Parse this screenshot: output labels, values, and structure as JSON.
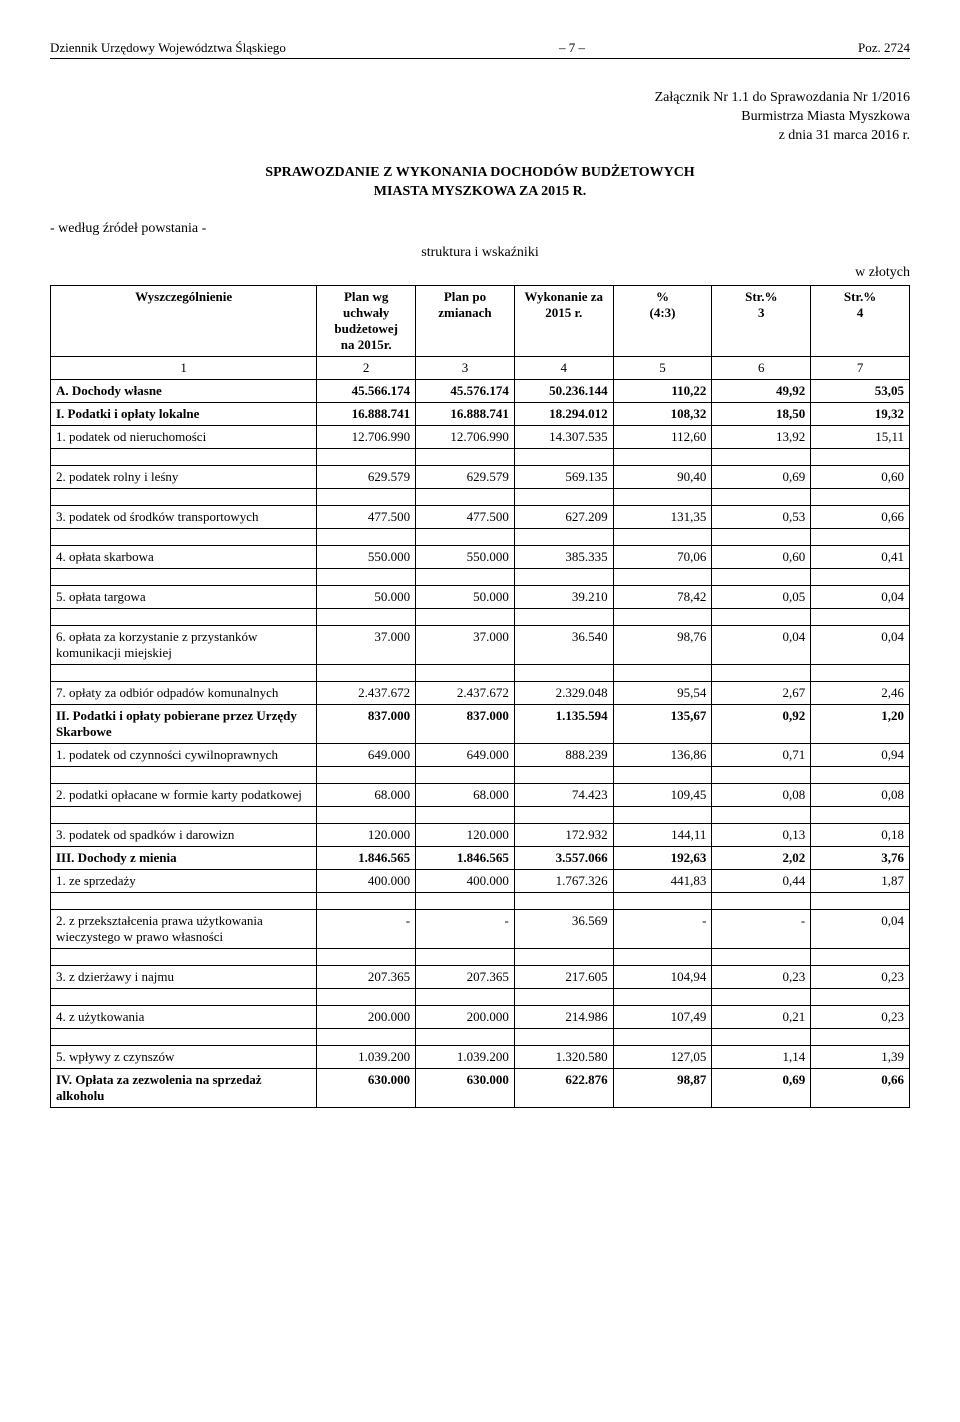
{
  "header": {
    "journal": "Dziennik Urzędowy Województwa Śląskiego",
    "page": "– 7 –",
    "poz": "Poz. 2724"
  },
  "attachment": {
    "line1": "Załącznik Nr 1.1 do Sprawozdania Nr 1/2016",
    "line2": "Burmistrza Miasta Myszkowa",
    "line3": "z dnia 31 marca 2016 r."
  },
  "title": {
    "line1": "SPRAWOZDANIE Z WYKONANIA DOCHODÓW BUDŻETOWYCH",
    "line2": "MIASTA MYSZKOWA ZA 2015 R."
  },
  "sourceLine": "- według źródeł powstania -",
  "structLine": "struktura i wskaźniki",
  "currency": "w złotych",
  "table": {
    "headers": {
      "c1": "Wyszczególnienie",
      "c2a": "Plan wg",
      "c2b": "uchwały",
      "c2c": "budżetowej",
      "c2d": "na 2015r.",
      "c3a": "Plan po",
      "c3b": "zmianach",
      "c4a": "Wykonanie za",
      "c4b": "2015 r.",
      "c5a": "%",
      "c5b": "(4:3)",
      "c6a": "Str.%",
      "c6b": "3",
      "c7a": "Str.%",
      "c7b": "4"
    },
    "colnums": [
      "1",
      "2",
      "3",
      "4",
      "5",
      "6",
      "7"
    ],
    "rows": [
      {
        "bold": true,
        "label": "A. Dochody własne",
        "v": [
          "45.566.174",
          "45.576.174",
          "50.236.144",
          "110,22",
          "49,92",
          "53,05"
        ]
      },
      {
        "bold": true,
        "label": "I. Podatki i opłaty lokalne",
        "v": [
          "16.888.741",
          "16.888.741",
          "18.294.012",
          "108,32",
          "18,50",
          "19,32"
        ]
      },
      {
        "label": "1. podatek od nieruchomości",
        "v": [
          "12.706.990",
          "12.706.990",
          "14.307.535",
          "112,60",
          "13,92",
          "15,11"
        ]
      },
      {
        "spacer": true
      },
      {
        "label": "2. podatek rolny i leśny",
        "v": [
          "629.579",
          "629.579",
          "569.135",
          "90,40",
          "0,69",
          "0,60"
        ]
      },
      {
        "spacer": true
      },
      {
        "label": "3. podatek od środków transportowych",
        "v": [
          "477.500",
          "477.500",
          "627.209",
          "131,35",
          "0,53",
          "0,66"
        ]
      },
      {
        "spacer": true
      },
      {
        "label": "4. opłata skarbowa",
        "v": [
          "550.000",
          "550.000",
          "385.335",
          "70,06",
          "0,60",
          "0,41"
        ]
      },
      {
        "spacer": true
      },
      {
        "label": "5. opłata targowa",
        "v": [
          "50.000",
          "50.000",
          "39.210",
          "78,42",
          "0,05",
          "0,04"
        ]
      },
      {
        "spacer": true
      },
      {
        "label": "6. opłata za korzystanie z przystanków komunikacji miejskiej",
        "v": [
          "37.000",
          "37.000",
          "36.540",
          "98,76",
          "0,04",
          "0,04"
        ]
      },
      {
        "spacer": true
      },
      {
        "label": "7. opłaty za odbiór odpadów komunalnych",
        "v": [
          "2.437.672",
          "2.437.672",
          "2.329.048",
          "95,54",
          "2,67",
          "2,46"
        ]
      },
      {
        "bold": true,
        "label": "II. Podatki i opłaty pobierane przez Urzędy Skarbowe",
        "v": [
          "837.000",
          "837.000",
          "1.135.594",
          "135,67",
          "0,92",
          "1,20"
        ]
      },
      {
        "label": "1. podatek od czynności cywilnoprawnych",
        "v": [
          "649.000",
          "649.000",
          "888.239",
          "136,86",
          "0,71",
          "0,94"
        ]
      },
      {
        "spacer": true
      },
      {
        "label": "2. podatki opłacane w formie karty podatkowej",
        "v": [
          "68.000",
          "68.000",
          "74.423",
          "109,45",
          "0,08",
          "0,08"
        ]
      },
      {
        "spacer": true
      },
      {
        "label": "3. podatek od spadków i darowizn",
        "v": [
          "120.000",
          "120.000",
          "172.932",
          "144,11",
          "0,13",
          "0,18"
        ]
      },
      {
        "bold": true,
        "label": "III. Dochody z mienia",
        "v": [
          "1.846.565",
          "1.846.565",
          "3.557.066",
          "192,63",
          "2,02",
          "3,76"
        ]
      },
      {
        "label": "1. ze sprzedaży",
        "v": [
          "400.000",
          "400.000",
          "1.767.326",
          "441,83",
          "0,44",
          "1,87"
        ]
      },
      {
        "spacer": true
      },
      {
        "label": "2. z przekształcenia prawa użytkowania wieczystego w prawo własności",
        "v": [
          "-",
          "-",
          "36.569",
          "-",
          "-",
          "0,04"
        ]
      },
      {
        "spacer": true
      },
      {
        "label": "3. z dzierżawy i najmu",
        "v": [
          "207.365",
          "207.365",
          "217.605",
          "104,94",
          "0,23",
          "0,23"
        ]
      },
      {
        "spacer": true
      },
      {
        "label": "4. z użytkowania",
        "v": [
          "200.000",
          "200.000",
          "214.986",
          "107,49",
          "0,21",
          "0,23"
        ]
      },
      {
        "spacer": true
      },
      {
        "label": "5. wpływy z czynszów",
        "v": [
          "1.039.200",
          "1.039.200",
          "1.320.580",
          "127,05",
          "1,14",
          "1,39"
        ]
      },
      {
        "bold": true,
        "label": "IV. Opłata za zezwolenia na sprzedaż alkoholu",
        "v": [
          "630.000",
          "630.000",
          "622.876",
          "98,87",
          "0,69",
          "0,66"
        ]
      }
    ]
  }
}
